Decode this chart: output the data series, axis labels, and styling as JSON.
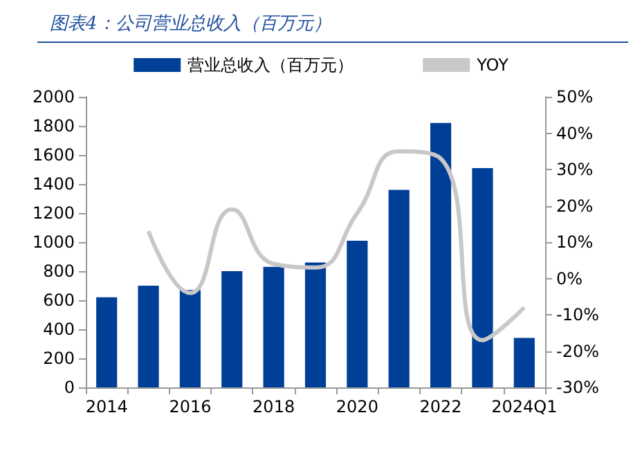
{
  "chart_data": {
    "type": "bar",
    "title": "图表4：公司营业总收入（百万元）",
    "categories": [
      "2014",
      null,
      "2016",
      null,
      "2018",
      null,
      "2020",
      null,
      "2022",
      null,
      "2024Q1"
    ],
    "series": [
      {
        "name": "营业总收入（百万元）",
        "color": "#003f98",
        "values": [
          620,
          700,
          670,
          800,
          830,
          860,
          1010,
          1360,
          1820,
          1510,
          340
        ]
      },
      {
        "name": "YOY",
        "type": "line",
        "axis": "y2",
        "color": "#c8c8c8",
        "values": [
          null,
          13,
          -4,
          19,
          4,
          3,
          18,
          35,
          33,
          -17,
          -8
        ]
      }
    ],
    "ylim": [
      0,
      2000
    ],
    "yticks": [
      0,
      200,
      400,
      600,
      800,
      1000,
      1200,
      1400,
      1600,
      1800,
      2000
    ],
    "y2lim": [
      -30,
      50
    ],
    "y2ticks": [
      {
        "value": -30,
        "label": "-30%"
      },
      {
        "value": -20,
        "label": "-20%"
      },
      {
        "value": -10,
        "label": "-10%"
      },
      {
        "value": 0,
        "label": "0%"
      },
      {
        "value": 10,
        "label": "10%"
      },
      {
        "value": 20,
        "label": "20%"
      },
      {
        "value": 30,
        "label": "30%"
      },
      {
        "value": 40,
        "label": "40%"
      },
      {
        "value": 50,
        "label": "50%"
      }
    ],
    "grid": false,
    "legend": "top",
    "marker": "none"
  }
}
